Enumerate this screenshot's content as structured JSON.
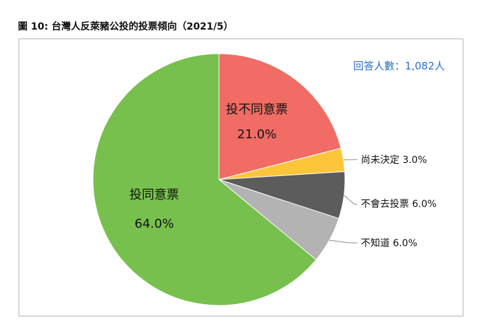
{
  "figure_title": "圖 10: 台灣人反萊豬公投的投票傾向（2021/5）",
  "respondents_label": "回答人數：1,082人",
  "chart_data": {
    "type": "pie",
    "title": "圖 10: 台灣人反萊豬公投的投票傾向（2021/5）",
    "annotation": "回答人數：1,082人",
    "slices": [
      {
        "label": "投不同意票",
        "value": 21.0,
        "value_text": "21.0%",
        "color": "#f06c64"
      },
      {
        "label": "尚未決定",
        "value": 3.0,
        "value_text": "3.0%",
        "color": "#fcc53a"
      },
      {
        "label": "不會去投票",
        "value": 6.0,
        "value_text": "6.0%",
        "color": "#5c5c5c"
      },
      {
        "label": "不知道",
        "value": 6.0,
        "value_text": "6.0%",
        "color": "#b3b3b3"
      },
      {
        "label": "投同意票",
        "value": 64.0,
        "value_text": "64.0%",
        "color": "#77c04d"
      }
    ]
  }
}
